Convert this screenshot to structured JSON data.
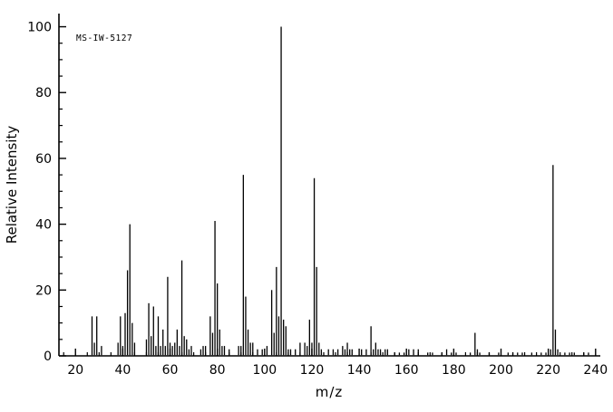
{
  "chart_data": {
    "type": "bar",
    "subtype": "mass-spectrum",
    "title": "",
    "annotation": "MS-IW-5127",
    "xlabel": "m/z",
    "ylabel": "Relative Intensity",
    "xlim": [
      13,
      242
    ],
    "ylim": [
      0,
      104
    ],
    "x_major_ticks": [
      20,
      40,
      60,
      80,
      100,
      120,
      140,
      160,
      180,
      200,
      220,
      240
    ],
    "x_minor_step": 5,
    "y_major_ticks": [
      0,
      20,
      40,
      60,
      80,
      100
    ],
    "y_minor_step": 5,
    "grid": false,
    "legend": false,
    "colors": {
      "peak": "#000000",
      "axis": "#000000",
      "text": "#000000",
      "background": "#ffffff"
    },
    "series": [
      {
        "name": "relative-intensity",
        "points": [
          [
            27,
            12
          ],
          [
            28,
            4
          ],
          [
            29,
            12
          ],
          [
            31,
            3
          ],
          [
            38,
            4
          ],
          [
            39,
            12
          ],
          [
            40,
            3
          ],
          [
            41,
            13
          ],
          [
            42,
            26
          ],
          [
            43,
            40
          ],
          [
            44,
            10
          ],
          [
            45,
            4
          ],
          [
            50,
            5
          ],
          [
            51,
            16
          ],
          [
            52,
            6
          ],
          [
            53,
            15
          ],
          [
            54,
            3
          ],
          [
            55,
            12
          ],
          [
            56,
            3
          ],
          [
            57,
            8
          ],
          [
            58,
            3
          ],
          [
            59,
            24
          ],
          [
            60,
            4
          ],
          [
            61,
            3
          ],
          [
            62,
            4
          ],
          [
            63,
            8
          ],
          [
            64,
            3
          ],
          [
            65,
            29
          ],
          [
            66,
            6
          ],
          [
            67,
            5
          ],
          [
            68,
            2
          ],
          [
            69,
            3
          ],
          [
            73,
            2
          ],
          [
            74,
            3
          ],
          [
            75,
            3
          ],
          [
            77,
            12
          ],
          [
            78,
            7
          ],
          [
            79,
            41
          ],
          [
            80,
            22
          ],
          [
            81,
            8
          ],
          [
            82,
            3
          ],
          [
            83,
            3
          ],
          [
            85,
            2
          ],
          [
            89,
            3
          ],
          [
            90,
            3
          ],
          [
            91,
            55
          ],
          [
            92,
            18
          ],
          [
            93,
            8
          ],
          [
            94,
            4
          ],
          [
            95,
            4
          ],
          [
            97,
            2
          ],
          [
            99,
            2
          ],
          [
            101,
            3
          ],
          [
            103,
            20
          ],
          [
            104,
            7
          ],
          [
            105,
            27
          ],
          [
            106,
            12
          ],
          [
            107,
            100
          ],
          [
            108,
            11
          ],
          [
            109,
            9
          ],
          [
            110,
            2
          ],
          [
            111,
            2
          ],
          [
            113,
            2
          ],
          [
            115,
            4
          ],
          [
            117,
            4
          ],
          [
            118,
            3
          ],
          [
            119,
            11
          ],
          [
            120,
            4
          ],
          [
            121,
            54
          ],
          [
            122,
            27
          ],
          [
            123,
            4
          ],
          [
            124,
            2
          ],
          [
            127,
            2
          ],
          [
            129,
            2
          ],
          [
            131,
            2
          ],
          [
            133,
            3
          ],
          [
            134,
            2
          ],
          [
            135,
            4
          ],
          [
            136,
            2
          ],
          [
            137,
            2
          ],
          [
            141,
            2
          ],
          [
            143,
            2
          ],
          [
            145,
            9
          ],
          [
            146,
            2
          ],
          [
            147,
            4
          ],
          [
            148,
            2
          ],
          [
            149,
            2
          ],
          [
            151,
            2
          ],
          [
            152,
            2
          ],
          [
            155,
            1
          ],
          [
            157,
            1
          ],
          [
            159,
            1
          ],
          [
            161,
            2
          ],
          [
            163,
            2
          ],
          [
            165,
            2
          ],
          [
            169,
            1
          ],
          [
            171,
            1
          ],
          [
            175,
            1
          ],
          [
            177,
            2
          ],
          [
            179,
            1
          ],
          [
            181,
            1
          ],
          [
            187,
            1
          ],
          [
            189,
            7
          ],
          [
            190,
            2
          ],
          [
            191,
            1
          ],
          [
            195,
            1
          ],
          [
            199,
            1
          ],
          [
            203,
            1
          ],
          [
            205,
            1
          ],
          [
            207,
            1
          ],
          [
            209,
            1
          ],
          [
            213,
            1
          ],
          [
            217,
            1
          ],
          [
            219,
            1
          ],
          [
            221,
            2
          ],
          [
            222,
            58
          ],
          [
            223,
            8
          ],
          [
            224,
            2
          ],
          [
            227,
            1
          ],
          [
            229,
            1
          ],
          [
            231,
            1
          ],
          [
            235,
            1
          ],
          [
            237,
            1
          ]
        ]
      }
    ]
  }
}
